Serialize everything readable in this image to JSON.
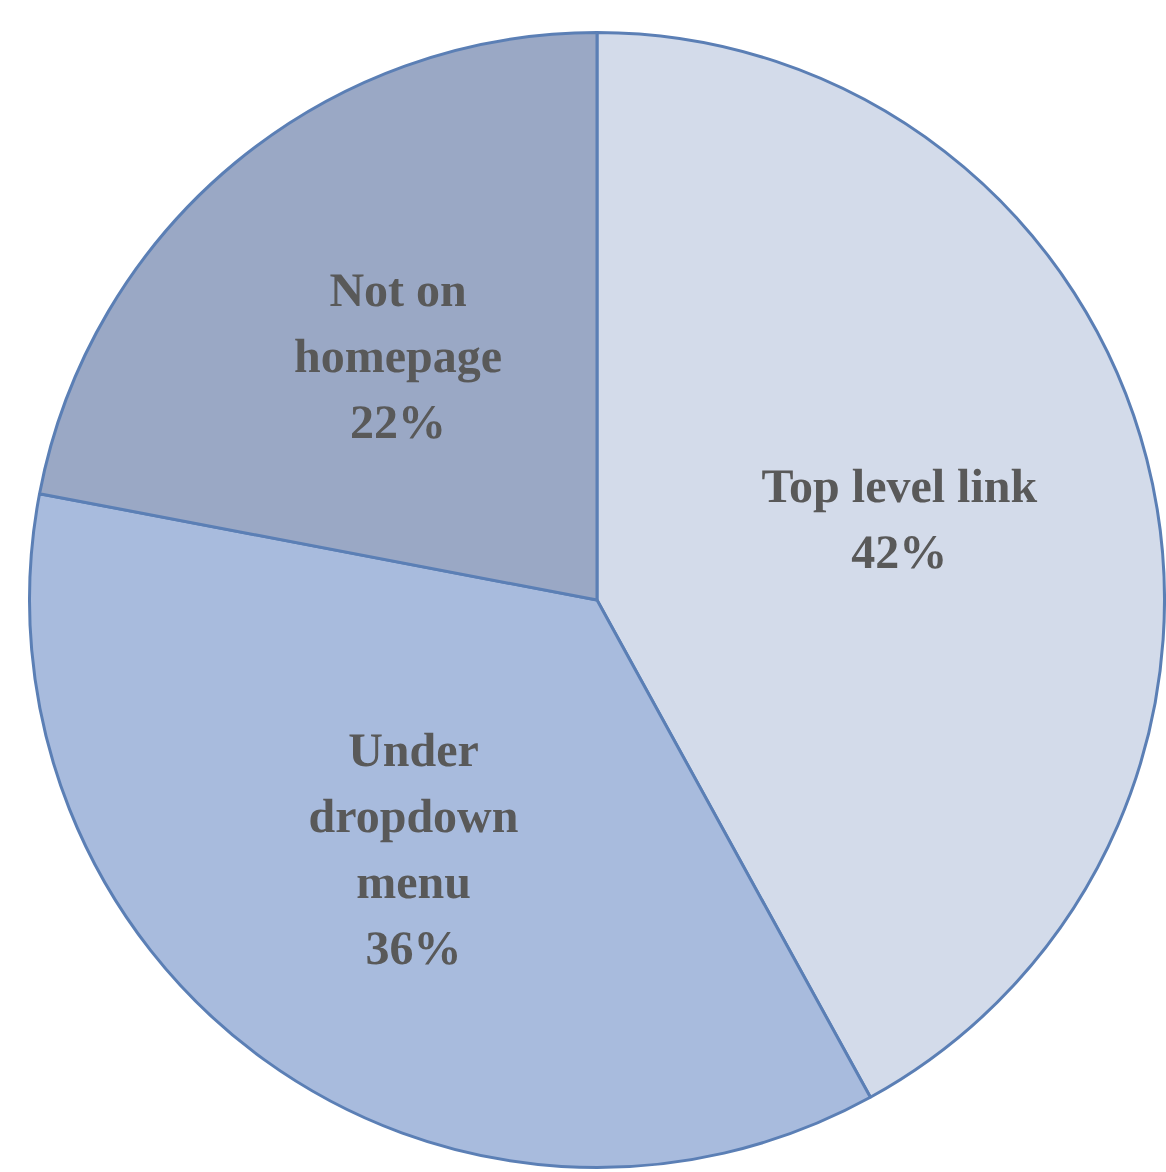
{
  "chart_data": {
    "type": "pie",
    "categories": [
      "Top level link",
      "Under dropdown menu",
      "Not on homepage"
    ],
    "values": [
      42,
      36,
      22
    ],
    "colors": [
      "#d3dbea",
      "#a8bbdd",
      "#9aa8c5"
    ],
    "value_labels": [
      "42%",
      "36%",
      "22%"
    ]
  }
}
